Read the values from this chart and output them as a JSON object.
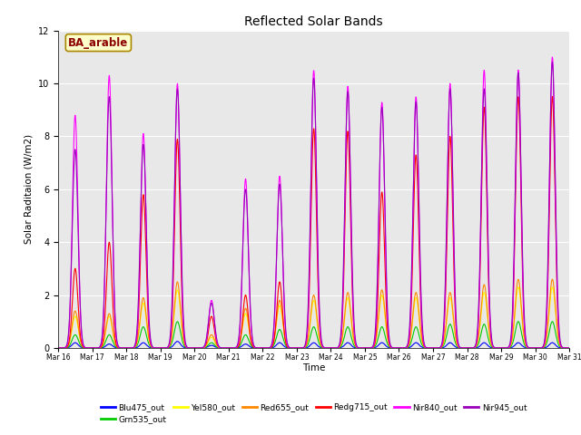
{
  "title": "Reflected Solar Bands",
  "xlabel": "Time",
  "ylabel": "Solar Raditaion (W/m2)",
  "annotation": "BA_arable",
  "annotation_color": "#8B0000",
  "annotation_bg": "#FFFFCC",
  "annotation_edge": "#AA8800",
  "ylim": [
    0,
    12
  ],
  "series": [
    {
      "label": "Blu475_out",
      "color": "#0000FF"
    },
    {
      "label": "Grn535_out",
      "color": "#00CC00"
    },
    {
      "label": "Yel580_out",
      "color": "#FFFF00"
    },
    {
      "label": "Red655_out",
      "color": "#FF8800"
    },
    {
      "label": "Redg715_out",
      "color": "#FF0000"
    },
    {
      "label": "Nir840_out",
      "color": "#FF00FF"
    },
    {
      "label": "Nir945_out",
      "color": "#9900BB"
    }
  ],
  "plot_bg": "#E8E8E8",
  "fig_bg": "#FFFFFF",
  "grid_color": "#FFFFFF",
  "nir840_peaks": [
    8.8,
    10.3,
    8.1,
    10.0,
    1.8,
    6.4,
    6.5,
    10.5,
    9.9,
    9.3,
    9.5,
    10.0,
    10.5,
    10.5,
    11.0
  ],
  "redg715_peaks": [
    3.0,
    4.0,
    5.8,
    7.9,
    1.2,
    2.0,
    2.5,
    8.3,
    8.2,
    5.9,
    7.3,
    8.0,
    9.1,
    9.5,
    9.5
  ],
  "nir945_peaks": [
    7.5,
    9.5,
    7.7,
    9.8,
    1.7,
    6.0,
    6.2,
    10.2,
    9.7,
    9.1,
    9.3,
    9.8,
    9.8,
    10.4,
    10.8
  ],
  "red655_peaks": [
    1.4,
    1.3,
    1.9,
    2.5,
    0.5,
    1.5,
    1.8,
    2.0,
    2.1,
    2.2,
    2.1,
    2.1,
    2.4,
    2.6,
    2.6
  ],
  "yel580_peaks": [
    1.2,
    1.2,
    1.7,
    2.2,
    0.4,
    1.3,
    1.6,
    1.8,
    1.9,
    2.0,
    1.9,
    1.9,
    2.1,
    2.3,
    2.3
  ],
  "grn535_peaks": [
    0.5,
    0.5,
    0.8,
    1.0,
    0.2,
    0.5,
    0.7,
    0.8,
    0.8,
    0.8,
    0.8,
    0.9,
    0.9,
    1.0,
    1.0
  ],
  "blu475_peaks": [
    0.2,
    0.15,
    0.2,
    0.25,
    0.1,
    0.15,
    0.2,
    0.2,
    0.2,
    0.2,
    0.2,
    0.2,
    0.2,
    0.2,
    0.2
  ]
}
